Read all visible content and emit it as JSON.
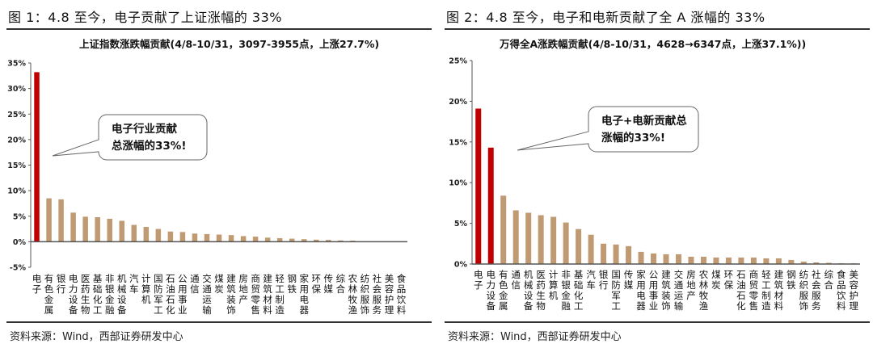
{
  "figures": [
    {
      "title": "图 1：4.8 至今，电子贡献了上证涨幅的 33%",
      "chart_title": "上证指数涨跌幅贡献(4/8-10/31，3097-3955点，上涨27.7%)",
      "callout": [
        "电子行业贡献",
        "总涨幅的33%!"
      ],
      "source": "资料来源：Wind，西部证券研发中心"
    },
    {
      "title": "图 2：4.8 至今，电子和电新贡献了全 A 涨幅的 33%",
      "chart_title": "万得全A涨跌幅贡献(4/8-10/31，4628→6347点，上涨37.1%))",
      "callout": [
        "电子+电新贡献总",
        "涨幅的33%!"
      ],
      "source": "资料来源：Wind，西部证券研发中心"
    }
  ],
  "colors": {
    "highlight": "#c00000",
    "bar": "#c09a72",
    "axis": "#555555",
    "text": "#111111"
  },
  "chart_data": [
    {
      "type": "bar",
      "title": "上证指数涨跌幅贡献(4/8-10/31，3097-3955点，上涨27.7%)",
      "xlabel": "",
      "ylabel": "",
      "ylim": [
        -5,
        35
      ],
      "yticks": [
        "35%",
        "30%",
        "25%",
        "20%",
        "15%",
        "10%",
        "5%",
        "0%",
        "-5%"
      ],
      "ytick_values": [
        35,
        30,
        25,
        20,
        15,
        10,
        5,
        0,
        -5
      ],
      "grid": false,
      "legend": null,
      "annotation": "电子行业贡献总涨幅的33%!",
      "highlighted": [
        "电子"
      ],
      "categories": [
        "电子",
        "有色金属",
        "银行",
        "电力设备",
        "医药生物",
        "基础化工",
        "非银金融",
        "机械设备",
        "汽车",
        "计算机",
        "国防军工",
        "石油石化",
        "公用事业",
        "通信",
        "交通运输",
        "煤炭",
        "建筑装饰",
        "房地产",
        "商贸零售",
        "建筑材料",
        "轻工制造",
        "钢铁",
        "家用电器",
        "环保",
        "传媒",
        "综合",
        "农林牧渔",
        "纺织服饰",
        "社会服务",
        "美容护理",
        "食品饮料"
      ],
      "values": [
        33.2,
        8.5,
        8.3,
        5.7,
        4.9,
        4.8,
        4.5,
        4.1,
        3.3,
        2.9,
        2.5,
        2.0,
        1.9,
        1.6,
        1.5,
        1.4,
        1.3,
        1.1,
        1.0,
        0.8,
        0.7,
        0.6,
        0.5,
        0.4,
        0.35,
        0.25,
        0.2,
        0.05,
        0.0,
        0.0,
        0.0
      ]
    },
    {
      "type": "bar",
      "title": "万得全A涨跌幅贡献(4/8-10/31，4628→6347点，上涨37.1%))",
      "xlabel": "",
      "ylabel": "",
      "ylim": [
        0,
        25
      ],
      "yticks": [
        "25%",
        "20%",
        "15%",
        "10%",
        "5%",
        "0%"
      ],
      "ytick_values": [
        25,
        20,
        15,
        10,
        5,
        0
      ],
      "grid": false,
      "legend": null,
      "annotation": "电子+电新贡献总涨幅的33%!",
      "highlighted": [
        "电子",
        "电力设备"
      ],
      "categories": [
        "电子",
        "电力设备",
        "有色金属",
        "通信",
        "机械设备",
        "医药生物",
        "计算机",
        "非银金融",
        "基础化工",
        "汽车",
        "银行",
        "国防军工",
        "传媒",
        "家用电器",
        "公用事业",
        "建筑装饰",
        "交通运输",
        "房地产",
        "农林牧渔",
        "煤炭",
        "环保",
        "石油石化",
        "商贸零售",
        "轻工制造",
        "建筑材料",
        "钢铁",
        "纺织服饰",
        "社会服务",
        "综合",
        "食品饮料",
        "美容护理"
      ],
      "values": [
        19.1,
        14.3,
        8.4,
        6.6,
        6.3,
        6.0,
        5.8,
        5.1,
        4.3,
        3.6,
        2.5,
        2.4,
        2.2,
        1.5,
        1.3,
        1.2,
        1.2,
        0.9,
        0.9,
        0.8,
        0.8,
        0.8,
        0.8,
        0.7,
        0.7,
        0.5,
        0.3,
        0.2,
        0.15,
        0.1,
        0.1
      ]
    }
  ]
}
